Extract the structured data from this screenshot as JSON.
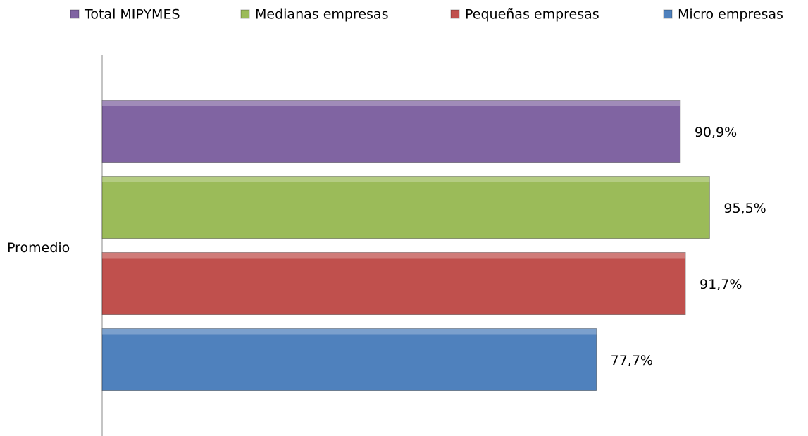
{
  "chart_data": {
    "type": "bar",
    "orientation": "horizontal",
    "categories": [
      "Promedio"
    ],
    "series": [
      {
        "name": "Total MIPYMES",
        "color": "#8064a2",
        "values": [
          90.9
        ],
        "value_labels": [
          "90,9%"
        ]
      },
      {
        "name": "Medianas empresas",
        "color": "#9bbb59",
        "values": [
          95.5
        ],
        "value_labels": [
          "95,5%"
        ]
      },
      {
        "name": "Pequeñas empresas",
        "color": "#c0504d",
        "values": [
          91.7
        ],
        "value_labels": [
          "91,7%"
        ]
      },
      {
        "name": "Micro empresas",
        "color": "#4f81bd",
        "values": [
          77.7
        ],
        "value_labels": [
          "77,7%"
        ]
      }
    ],
    "xlim": [
      0,
      100
    ],
    "legend": "top"
  }
}
